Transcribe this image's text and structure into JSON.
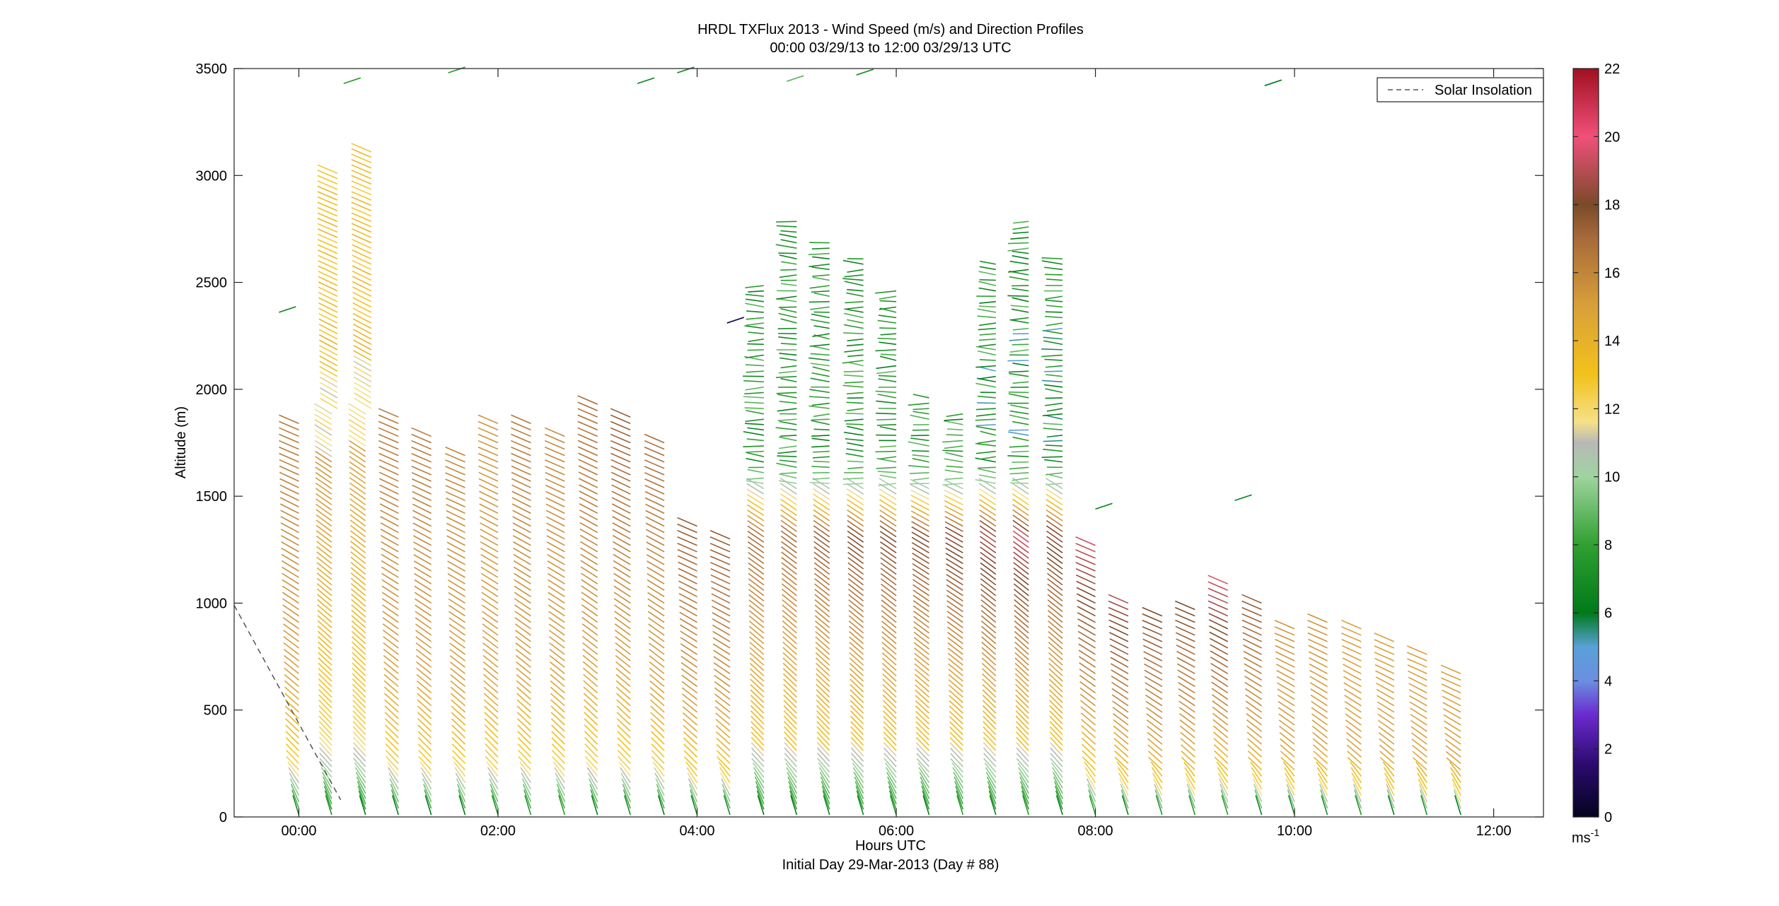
{
  "figure": {
    "title_line1": "HRDL TXFlux 2013 - Wind Speed (m/s) and Direction Profiles",
    "title_line2": "00:00 03/29/13 to 12:00 03/29/13  UTC",
    "footer": "Initial Day 29-Mar-2013 (Day # 88)"
  },
  "chart_data": {
    "type": "wind-barb profile",
    "xlabel": "Hours UTC",
    "ylabel": "Altitude (m)",
    "x_ticks": [
      "00:00",
      "02:00",
      "04:00",
      "06:00",
      "08:00",
      "10:00",
      "12:00"
    ],
    "x_tick_hours": [
      0,
      2,
      4,
      6,
      8,
      10,
      12
    ],
    "xlim_hours": [
      -0.65,
      12.5
    ],
    "ylim": [
      0,
      3500
    ],
    "y_ticks": [
      0,
      500,
      1000,
      1500,
      2000,
      2500,
      3000,
      3500
    ],
    "grid": false,
    "legend": {
      "position": "top-right",
      "entries": [
        "Solar Insolation"
      ]
    },
    "colorbar": {
      "label": "ms",
      "label_exp": "-1",
      "range": [
        0,
        22
      ],
      "ticks": [
        0,
        2,
        4,
        6,
        8,
        10,
        12,
        14,
        16,
        18,
        20,
        22
      ],
      "stops": [
        {
          "v": 0,
          "c": "#04041f"
        },
        {
          "v": 1.5,
          "c": "#2a0a6b"
        },
        {
          "v": 3,
          "c": "#6a2ad0"
        },
        {
          "v": 4,
          "c": "#6b8fe0"
        },
        {
          "v": 5,
          "c": "#5aa0d8"
        },
        {
          "v": 6,
          "c": "#007a1a"
        },
        {
          "v": 8,
          "c": "#30a030"
        },
        {
          "v": 10,
          "c": "#9fd49f"
        },
        {
          "v": 11,
          "c": "#b8b8b8"
        },
        {
          "v": 11.6,
          "c": "#f5e18a"
        },
        {
          "v": 13,
          "c": "#f2c21a"
        },
        {
          "v": 15,
          "c": "#d9a03a"
        },
        {
          "v": 17,
          "c": "#a86a3a"
        },
        {
          "v": 18,
          "c": "#7a4a2a"
        },
        {
          "v": 20,
          "c": "#f0507a"
        },
        {
          "v": 22,
          "c": "#a01020"
        }
      ]
    },
    "solar_insolation": {
      "x": [
        -0.65,
        0.42
      ],
      "y": [
        990,
        80
      ]
    },
    "profiles": [
      {
        "t": 0.0,
        "top": 1850,
        "kind": "normal",
        "peak": 16.5
      },
      {
        "t": 0.33,
        "top": 3020,
        "kind": "deep",
        "peak": 15.5
      },
      {
        "t": 0.67,
        "top": 3110,
        "kind": "deep",
        "peak": 15.0
      },
      {
        "t": 1.0,
        "top": 1880,
        "kind": "normal",
        "peak": 16.5
      },
      {
        "t": 1.33,
        "top": 1790,
        "kind": "normal",
        "peak": 16.5
      },
      {
        "t": 1.67,
        "top": 1710,
        "kind": "normal",
        "peak": 16.0
      },
      {
        "t": 2.0,
        "top": 1850,
        "kind": "normal",
        "peak": 15.5
      },
      {
        "t": 2.33,
        "top": 1840,
        "kind": "normal",
        "peak": 16.5
      },
      {
        "t": 2.67,
        "top": 1800,
        "kind": "normal",
        "peak": 16.0
      },
      {
        "t": 3.0,
        "top": 1950,
        "kind": "normal",
        "peak": 17.0
      },
      {
        "t": 3.33,
        "top": 1880,
        "kind": "normal",
        "peak": 17.5
      },
      {
        "t": 3.67,
        "top": 1760,
        "kind": "normal",
        "peak": 17.0
      },
      {
        "t": 4.0,
        "top": 1380,
        "kind": "normal",
        "peak": 17.5
      },
      {
        "t": 4.33,
        "top": 1300,
        "kind": "normal",
        "peak": 17.5
      },
      {
        "t": 4.67,
        "top": 2500,
        "kind": "green",
        "peak": 17.0
      },
      {
        "t": 5.0,
        "top": 2790,
        "kind": "green",
        "peak": 17.0
      },
      {
        "t": 5.33,
        "top": 2700,
        "kind": "green",
        "peak": 17.5
      },
      {
        "t": 5.67,
        "top": 2620,
        "kind": "green",
        "peak": 18.0
      },
      {
        "t": 6.0,
        "top": 2480,
        "kind": "green",
        "peak": 18.0
      },
      {
        "t": 6.33,
        "top": 1980,
        "kind": "green",
        "peak": 18.0
      },
      {
        "t": 6.67,
        "top": 1890,
        "kind": "green",
        "peak": 18.5
      },
      {
        "t": 7.0,
        "top": 2600,
        "kind": "green",
        "peak": 19.0
      },
      {
        "t": 7.33,
        "top": 2800,
        "kind": "green",
        "peak": 19.5
      },
      {
        "t": 7.67,
        "top": 2610,
        "kind": "green",
        "peak": 18.5
      },
      {
        "t": 8.0,
        "top": 1290,
        "kind": "normal",
        "peak": 19.5
      },
      {
        "t": 8.33,
        "top": 1020,
        "kind": "normal",
        "peak": 19.0
      },
      {
        "t": 8.67,
        "top": 940,
        "kind": "normal",
        "peak": 18.0
      },
      {
        "t": 9.0,
        "top": 980,
        "kind": "normal",
        "peak": 18.0
      },
      {
        "t": 9.33,
        "top": 1090,
        "kind": "normal",
        "peak": 19.5
      },
      {
        "t": 9.67,
        "top": 1000,
        "kind": "normal",
        "peak": 17.5
      },
      {
        "t": 10.0,
        "top": 900,
        "kind": "normal",
        "peak": 15.5
      },
      {
        "t": 10.33,
        "top": 930,
        "kind": "normal",
        "peak": 15.5
      },
      {
        "t": 10.67,
        "top": 890,
        "kind": "normal",
        "peak": 15.0
      },
      {
        "t": 11.0,
        "top": 820,
        "kind": "normal",
        "peak": 15.0
      },
      {
        "t": 11.33,
        "top": 780,
        "kind": "normal",
        "peak": 15.0
      },
      {
        "t": 11.67,
        "top": 690,
        "kind": "normal",
        "peak": 15.0
      }
    ],
    "sparse_barbs": [
      {
        "t": -0.2,
        "alt": 2360,
        "speed": 7
      },
      {
        "t": 0.45,
        "alt": 3430,
        "speed": 8
      },
      {
        "t": 1.5,
        "alt": 3480,
        "speed": 8
      },
      {
        "t": 3.4,
        "alt": 3430,
        "speed": 7
      },
      {
        "t": 3.8,
        "alt": 3480,
        "speed": 7
      },
      {
        "t": 4.9,
        "alt": 3440,
        "speed": 9
      },
      {
        "t": 5.6,
        "alt": 3470,
        "speed": 7
      },
      {
        "t": 4.3,
        "alt": 2310,
        "speed": 1
      },
      {
        "t": 9.7,
        "alt": 3420,
        "speed": 6
      },
      {
        "t": 8.0,
        "alt": 1440,
        "speed": 7
      },
      {
        "t": 9.4,
        "alt": 1480,
        "speed": 7
      }
    ]
  }
}
